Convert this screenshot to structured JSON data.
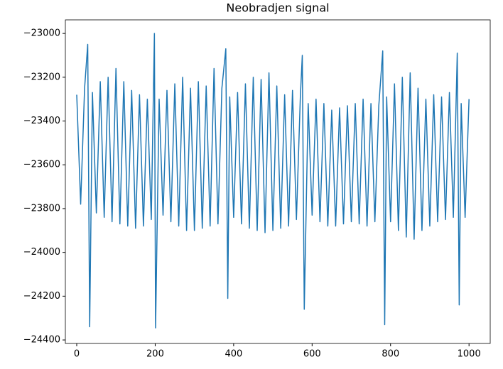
{
  "chart_data": {
    "type": "line",
    "title": "Neobradjen signal",
    "x": [
      0,
      10,
      20,
      28,
      33,
      40,
      50,
      60,
      70,
      80,
      90,
      100,
      110,
      120,
      130,
      140,
      150,
      160,
      170,
      180,
      190,
      198,
      201,
      210,
      220,
      230,
      240,
      250,
      260,
      270,
      280,
      290,
      300,
      310,
      320,
      330,
      340,
      350,
      360,
      370,
      380,
      385,
      390,
      400,
      410,
      420,
      430,
      440,
      450,
      460,
      470,
      480,
      490,
      500,
      510,
      520,
      530,
      540,
      550,
      560,
      570,
      575,
      580,
      590,
      600,
      610,
      620,
      630,
      640,
      650,
      660,
      670,
      680,
      690,
      700,
      710,
      720,
      730,
      740,
      750,
      760,
      770,
      780,
      785,
      790,
      800,
      810,
      820,
      830,
      840,
      850,
      860,
      870,
      880,
      890,
      900,
      910,
      920,
      930,
      940,
      950,
      960,
      970,
      975,
      980,
      990,
      1000
    ],
    "series": [
      {
        "name": "signal",
        "color": "#1f77b4",
        "values": [
          -23280,
          -23780,
          -23250,
          -23050,
          -24340,
          -23270,
          -23820,
          -23220,
          -23840,
          -23200,
          -23860,
          -23160,
          -23870,
          -23220,
          -23880,
          -23260,
          -23890,
          -23280,
          -23880,
          -23300,
          -23850,
          -23000,
          -24345,
          -23300,
          -23830,
          -23260,
          -23860,
          -23230,
          -23880,
          -23200,
          -23900,
          -23250,
          -23900,
          -23220,
          -23890,
          -23240,
          -23880,
          -23160,
          -23870,
          -23250,
          -23070,
          -24210,
          -23290,
          -23840,
          -23270,
          -23870,
          -23230,
          -23890,
          -23200,
          -23900,
          -23210,
          -23910,
          -23180,
          -23900,
          -23240,
          -23890,
          -23280,
          -23880,
          -23260,
          -23850,
          -23290,
          -23100,
          -24260,
          -23320,
          -23830,
          -23300,
          -23860,
          -23320,
          -23880,
          -23350,
          -23880,
          -23340,
          -23870,
          -23330,
          -23860,
          -23320,
          -23870,
          -23300,
          -23880,
          -23320,
          -23860,
          -23330,
          -23080,
          -24330,
          -23290,
          -23860,
          -23230,
          -23900,
          -23200,
          -23930,
          -23180,
          -23940,
          -23250,
          -23900,
          -23300,
          -23880,
          -23280,
          -23860,
          -23290,
          -23850,
          -23270,
          -23840,
          -23090,
          -24240,
          -23320,
          -23840,
          -23300
        ]
      }
    ],
    "xlim": [
      -29,
      1054
    ],
    "xticks": [
      0,
      200,
      400,
      600,
      800,
      1000
    ],
    "ylim": [
      -24416,
      -22938
    ],
    "yticks": [
      {
        "value": -24400,
        "label": "−24400"
      },
      {
        "value": -24200,
        "label": "−24200"
      },
      {
        "value": -24000,
        "label": "−24000"
      },
      {
        "value": -23800,
        "label": "−23800"
      },
      {
        "value": -23600,
        "label": "−23600"
      },
      {
        "value": -23400,
        "label": "−23400"
      },
      {
        "value": -23200,
        "label": "−23200"
      },
      {
        "value": -23000,
        "label": "−23000"
      }
    ],
    "grid": false
  }
}
